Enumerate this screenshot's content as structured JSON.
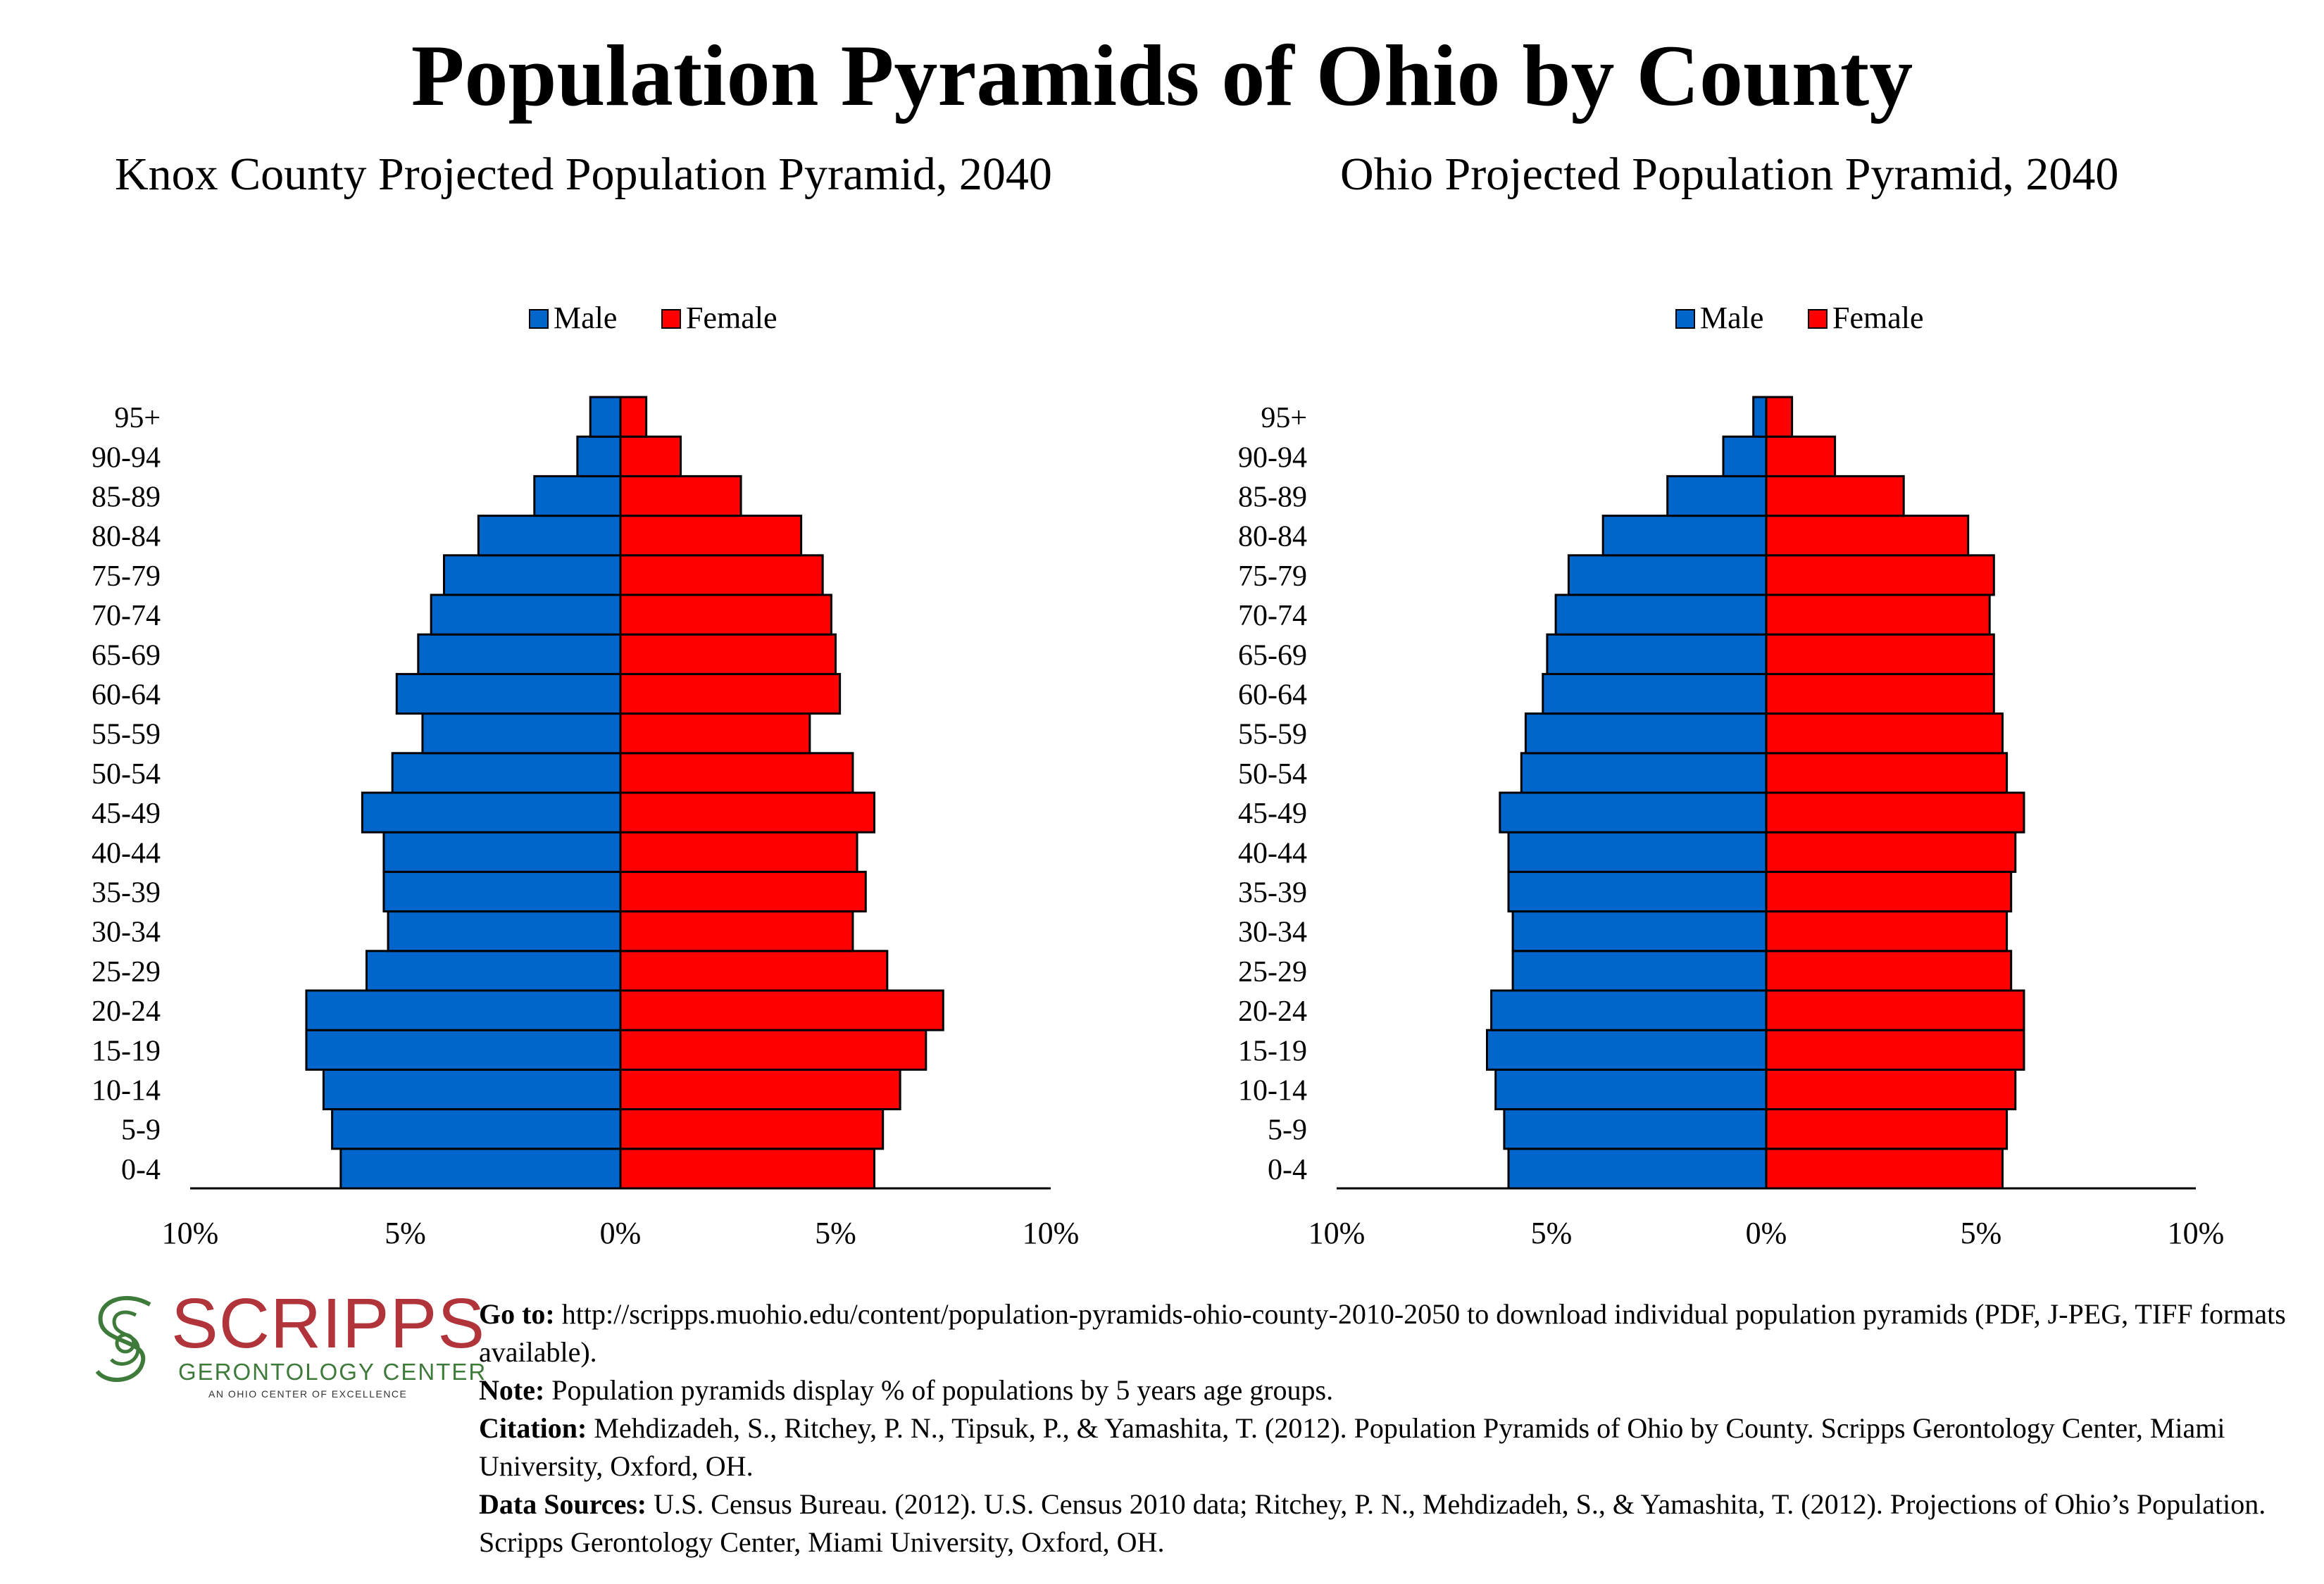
{
  "title": "Population Pyramids of Ohio by County",
  "chart_data": [
    {
      "type": "bar",
      "orientation": "horizontal-pyramid",
      "title": "Knox County Projected Population Pyramid, 2040",
      "categories": [
        "0-4",
        "5-9",
        "10-14",
        "15-19",
        "20-24",
        "25-29",
        "30-34",
        "35-39",
        "40-44",
        "45-49",
        "50-54",
        "55-59",
        "60-64",
        "65-69",
        "70-74",
        "75-79",
        "80-84",
        "85-89",
        "90-94",
        "95+"
      ],
      "series": [
        {
          "name": "Male",
          "color": "#0066cc",
          "values": [
            6.5,
            6.7,
            6.9,
            7.3,
            7.3,
            5.9,
            5.4,
            5.5,
            5.5,
            6.0,
            5.3,
            4.6,
            5.2,
            4.7,
            4.4,
            4.1,
            3.3,
            2.0,
            1.0,
            0.7
          ]
        },
        {
          "name": "Female",
          "color": "#ff0000",
          "values": [
            5.9,
            6.1,
            6.5,
            7.1,
            7.5,
            6.2,
            5.4,
            5.7,
            5.5,
            5.9,
            5.4,
            4.4,
            5.1,
            5.0,
            4.9,
            4.7,
            4.2,
            2.8,
            1.4,
            0.6
          ]
        }
      ],
      "xlim": [
        -10,
        10
      ],
      "xticks": [
        "10%",
        "5%",
        "0%",
        "5%",
        "10%"
      ],
      "legend": "top-center"
    },
    {
      "type": "bar",
      "orientation": "horizontal-pyramid",
      "title": "Ohio Projected Population Pyramid, 2040",
      "categories": [
        "0-4",
        "5-9",
        "10-14",
        "15-19",
        "20-24",
        "25-29",
        "30-34",
        "35-39",
        "40-44",
        "45-49",
        "50-54",
        "55-59",
        "60-64",
        "65-69",
        "70-74",
        "75-79",
        "80-84",
        "85-89",
        "90-94",
        "95+"
      ],
      "series": [
        {
          "name": "Male",
          "color": "#0066cc",
          "values": [
            6.0,
            6.1,
            6.3,
            6.5,
            6.4,
            5.9,
            5.9,
            6.0,
            6.0,
            6.2,
            5.7,
            5.6,
            5.2,
            5.1,
            4.9,
            4.6,
            3.8,
            2.3,
            1.0,
            0.3
          ]
        },
        {
          "name": "Female",
          "color": "#ff0000",
          "values": [
            5.5,
            5.6,
            5.8,
            6.0,
            6.0,
            5.7,
            5.6,
            5.7,
            5.8,
            6.0,
            5.6,
            5.5,
            5.3,
            5.3,
            5.2,
            5.3,
            4.7,
            3.2,
            1.6,
            0.6
          ]
        }
      ],
      "xlim": [
        -10,
        10
      ],
      "xticks": [
        "10%",
        "5%",
        "0%",
        "5%",
        "10%"
      ],
      "legend": "top-center"
    }
  ],
  "logo": {
    "word": "SCRIPPS",
    "subtitle": "GERONTOLOGY CENTER",
    "tagline": "AN OHIO CENTER OF EXCELLENCE"
  },
  "notes": {
    "goto_label": "Go to:",
    "goto_text": " http://scripps.muohio.edu/content/population-pyramids-ohio-county-2010-2050 to download individual population pyramids (PDF, J-PEG, TIFF formats available).",
    "note_label": "Note:",
    "note_text": " Population pyramids display % of populations by 5 years age groups.",
    "citation_label": "Citation:",
    "citation_text": " Mehdizadeh, S., Ritchey, P. N., Tipsuk, P., & Yamashita, T. (2012). Population Pyramids of Ohio by County. Scripps Gerontology Center, Miami University, Oxford, OH.",
    "sources_label": "Data Sources:",
    "sources_text": " U.S. Census Bureau. (2012). U.S. Census 2010 data; Ritchey, P. N., Mehdizadeh, S., & Yamashita, T. (2012). Projections of Ohio’s Population. Scripps Gerontology Center, Miami University, Oxford, OH."
  }
}
